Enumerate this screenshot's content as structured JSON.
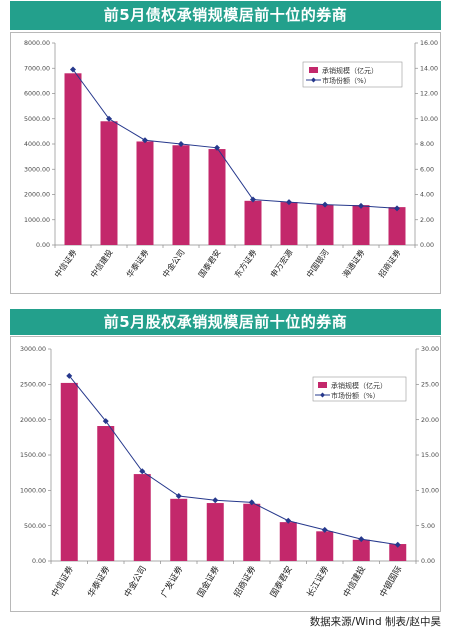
{
  "colors": {
    "banner": "#23a08c",
    "bar": "#c3286b",
    "line": "#26388c",
    "axis": "#8c8c8c"
  },
  "chart_data": [
    {
      "type": "bar",
      "title": "前5月债权承销规模居前十位的券商",
      "categories": [
        "中信证券",
        "中信建投",
        "华泰证券",
        "中金公司",
        "国泰君安",
        "东方证券",
        "申万宏源",
        "中国银河",
        "海通证券",
        "招商证券"
      ],
      "series": [
        {
          "name": "承销规模（亿元）",
          "type": "bar",
          "axis": "left",
          "values": [
            6800,
            4900,
            4100,
            3950,
            3800,
            1750,
            1700,
            1600,
            1580,
            1500
          ]
        },
        {
          "name": "市场份额（%）",
          "type": "line",
          "axis": "right",
          "values": [
            13.9,
            10.0,
            8.3,
            8.0,
            7.7,
            3.6,
            3.4,
            3.2,
            3.1,
            2.9
          ]
        }
      ],
      "ylim": [
        0,
        8000
      ],
      "y2lim": [
        0,
        16
      ],
      "yticks": [
        "0.00",
        "1000.00",
        "2000.00",
        "3000.00",
        "4000.00",
        "5000.00",
        "6000.00",
        "7000.00",
        "8000.00"
      ],
      "y2ticks": [
        "0.00",
        "2.00",
        "4.00",
        "6.00",
        "8.00",
        "10.00",
        "12.00",
        "14.00",
        "16.00"
      ],
      "grid": false,
      "legend": "upper-right"
    },
    {
      "type": "bar",
      "title": "前5月股权承销规模居前十位的券商",
      "categories": [
        "中信证券",
        "华泰证券",
        "中金公司",
        "广发证券",
        "国金证券",
        "招商证券",
        "国泰君安",
        "长江证券",
        "中信建投",
        "中银国际"
      ],
      "series": [
        {
          "name": "承销规模（亿元）",
          "type": "bar",
          "axis": "left",
          "values": [
            2520,
            1910,
            1230,
            880,
            820,
            810,
            550,
            420,
            300,
            240
          ]
        },
        {
          "name": "市场份额（%）",
          "type": "line",
          "axis": "right",
          "values": [
            26.2,
            19.8,
            12.7,
            9.2,
            8.6,
            8.3,
            5.7,
            4.4,
            3.1,
            2.3
          ]
        }
      ],
      "ylim": [
        0,
        3000
      ],
      "y2lim": [
        0,
        30
      ],
      "yticks": [
        "0.00",
        "500.00",
        "1000.00",
        "1500.00",
        "2000.00",
        "2500.00",
        "3000.00"
      ],
      "y2ticks": [
        "0.00",
        "5.00",
        "10.00",
        "15.00",
        "20.00",
        "25.00",
        "30.00"
      ],
      "grid": false,
      "legend": "upper-right"
    }
  ],
  "footer": {
    "source": "数据来源/Wind 制表/赵中昊"
  }
}
